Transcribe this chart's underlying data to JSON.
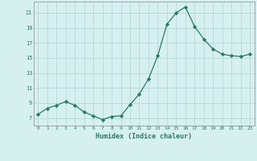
{
  "x": [
    0,
    1,
    2,
    3,
    4,
    5,
    6,
    7,
    8,
    9,
    10,
    11,
    12,
    13,
    14,
    15,
    16,
    17,
    18,
    19,
    20,
    21,
    22,
    23
  ],
  "y": [
    7.5,
    8.3,
    8.7,
    9.2,
    8.7,
    7.8,
    7.3,
    6.8,
    7.2,
    7.3,
    8.8,
    10.2,
    12.2,
    15.3,
    19.5,
    21.0,
    21.8,
    19.2,
    17.5,
    16.2,
    15.5,
    15.3,
    15.2,
    15.5
  ],
  "line_color": "#2a7a65",
  "marker": "D",
  "marker_size": 2.2,
  "bg_color": "#d6f0f0",
  "grid_color": "#b8d8d8",
  "tick_color": "#2a7a65",
  "xlabel": "Humidex (Indice chaleur)",
  "ylim": [
    6.0,
    22.5
  ],
  "yticks": [
    7,
    9,
    11,
    13,
    15,
    17,
    19,
    21
  ],
  "xticks": [
    0,
    1,
    2,
    3,
    4,
    5,
    6,
    7,
    8,
    9,
    10,
    11,
    12,
    13,
    14,
    15,
    16,
    17,
    18,
    19,
    20,
    21,
    22,
    23
  ],
  "xlim": [
    -0.5,
    23.5
  ]
}
